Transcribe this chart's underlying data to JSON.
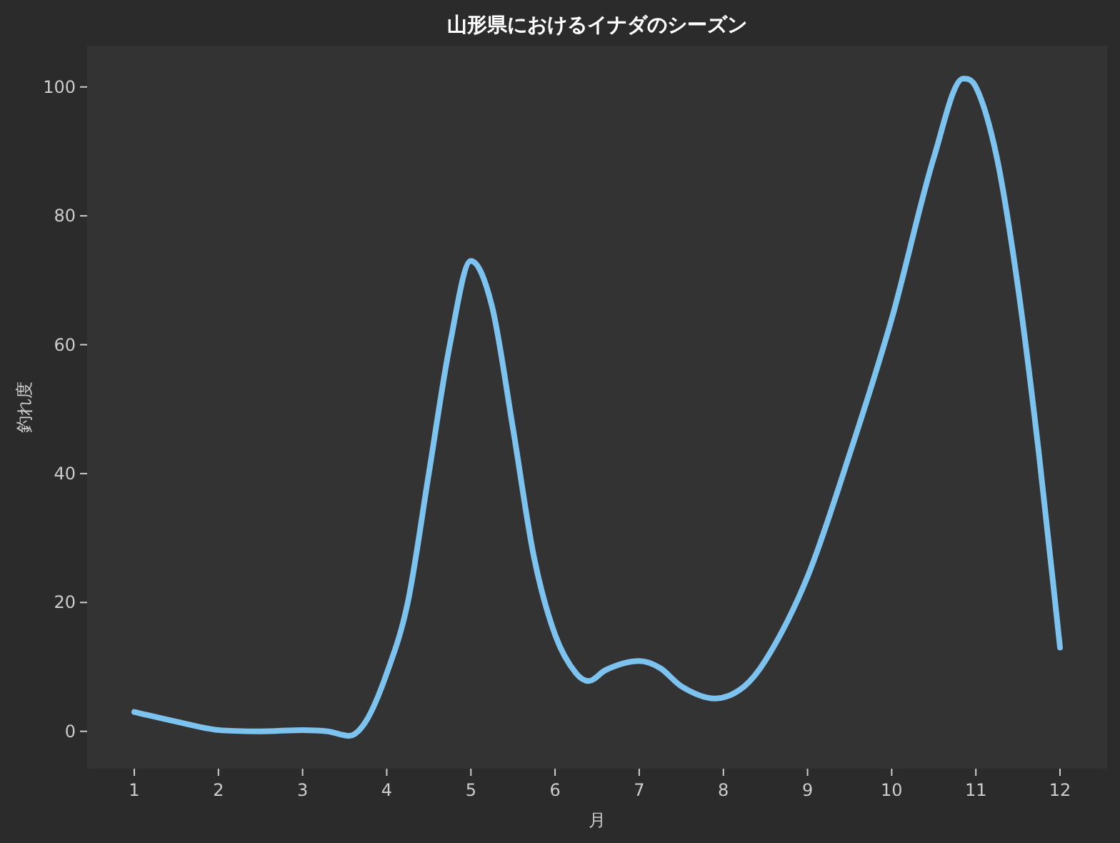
{
  "chart_data": {
    "type": "line",
    "title": "山形県におけるイナダのシーズン",
    "xlabel": "月",
    "ylabel": "釣れ度",
    "series": [
      {
        "color": "#7cc3f0",
        "x": [
          1,
          1.5,
          2,
          2.5,
          3,
          3.3,
          3.55,
          3.75,
          4,
          4.25,
          4.5,
          4.75,
          5,
          5.25,
          5.5,
          5.75,
          6,
          6.25,
          6.4,
          6.6,
          7,
          7.25,
          7.5,
          7.9,
          8.25,
          8.5,
          9,
          9.5,
          10,
          10.5,
          10.85,
          11,
          11.25,
          11.5,
          11.75,
          12
        ],
        "values": [
          3,
          1.5,
          0.2,
          0,
          0.2,
          0,
          -0.7,
          1.5,
          9,
          20,
          40,
          60,
          73,
          66,
          47,
          27,
          15,
          9,
          7.8,
          9.5,
          10.9,
          9.8,
          7,
          5.1,
          7,
          11,
          24,
          43,
          64,
          89,
          101.3,
          100,
          89,
          69,
          43,
          13
        ]
      }
    ],
    "xlim": [
      0.44,
      12.56
    ],
    "ylim": [
      -5.8,
      106.4
    ],
    "xticks": [
      1,
      2,
      3,
      4,
      5,
      6,
      7,
      8,
      9,
      10,
      11,
      12
    ],
    "yticks": [
      0,
      20,
      40,
      60,
      80,
      100
    ],
    "grid": false,
    "marker": "none",
    "line_style": "solid"
  }
}
